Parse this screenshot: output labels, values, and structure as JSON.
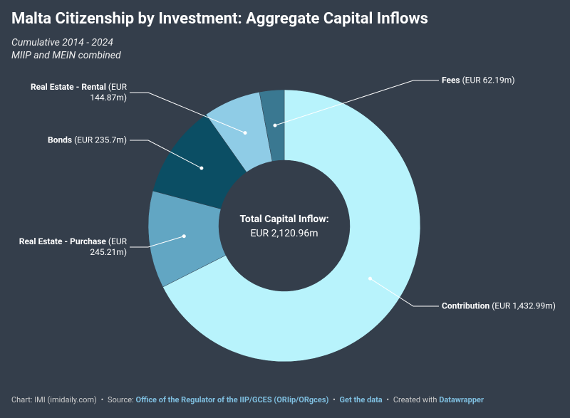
{
  "chart_data": {
    "type": "pie",
    "title": "Malta Citizenship by Investment: Aggregate Capital Inflows",
    "subtitle": [
      "Cumulative 2014 - 2024",
      "MIIP and MEIN combined"
    ],
    "categories": [
      "Contribution",
      "Real Estate - Purchase",
      "Bonds",
      "Real Estate - Rental",
      "Fees"
    ],
    "values": [
      1432.99,
      245.21,
      235.7,
      144.87,
      62.19
    ],
    "value_labels": [
      "(EUR 1,432.99m)",
      "(EUR 245.21m)",
      "(EUR 235.7m)",
      "(EUR 144.87m)",
      "(EUR 62.19m)"
    ],
    "colors": [
      "#b8f3fc",
      "#62a6c3",
      "#0b4e64",
      "#8fcce6",
      "#3a7891"
    ],
    "donut": true,
    "center_title": "Total Capital Inflow:",
    "center_value": "EUR 2,120.96m",
    "footer": {
      "credit": "Chart: IMI (imidaily.com)",
      "separator": "•",
      "source_label": "Source:",
      "source": "Office of the Regulator of the IIP/GCES (ORIip/ORgces)",
      "get_data": "Get the data",
      "created_label": "Created with",
      "created_with": "Datawrapper"
    }
  }
}
